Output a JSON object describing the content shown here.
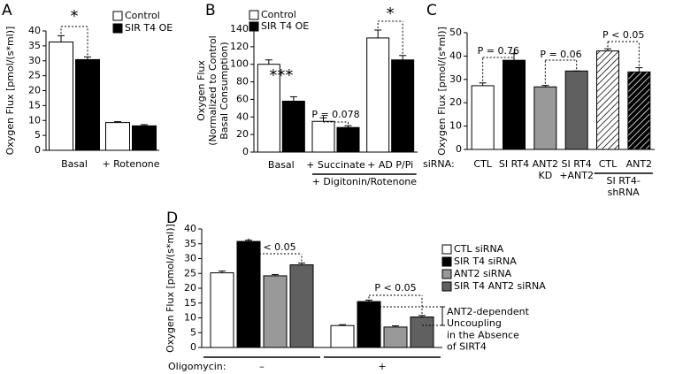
{
  "chart_data": [
    {
      "type": "bar",
      "label": "A",
      "ylabel": "Oxygen Flux [pmol/(s*ml)]",
      "categories": [
        "Basal",
        "+ Rotenone"
      ],
      "series": [
        {
          "name": "Control",
          "color": "#ffffff",
          "values": [
            36.3,
            9.3
          ],
          "errors": [
            2.1,
            0.3
          ]
        },
        {
          "name": "SIR T4 OE",
          "color": "#000000",
          "values": [
            30.4,
            8.2
          ],
          "errors": [
            0.9,
            0.4
          ]
        }
      ],
      "ylim": [
        0,
        40
      ],
      "yticks": [
        0,
        5,
        10,
        15,
        20,
        25,
        30,
        35,
        40
      ],
      "annotations": [
        "*"
      ]
    },
    {
      "type": "bar",
      "label": "B",
      "ylabel": "Oxygen Flux\n(Normalized to Control\nBasal Consumption)",
      "categories": [
        "Basal",
        "+ Succinate",
        "+ AD P/Pi"
      ],
      "group_label": "+ Digitonin/Rotenone",
      "series": [
        {
          "name": "Control",
          "color": "#ffffff",
          "values": [
            100,
            35,
            130
          ],
          "errors": [
            5,
            4,
            9
          ]
        },
        {
          "name": "SIR T4 OE",
          "color": "#000000",
          "values": [
            58,
            28,
            105
          ],
          "errors": [
            5,
            2,
            5
          ]
        }
      ],
      "ylim": [
        0,
        140
      ],
      "yticks": [
        0,
        20,
        40,
        60,
        80,
        100,
        120,
        140
      ],
      "annotations": [
        "***",
        "P = 0.078",
        "*"
      ]
    },
    {
      "type": "bar",
      "label": "C",
      "ylabel": "Oxygen Flux [pmol/(s*ml)]",
      "x_prefix": "siRNA:",
      "categories": [
        "CTL",
        "SI RT4",
        "ANT2\nKD",
        "SI RT4\n+ANT2",
        "CTL",
        "ANT2"
      ],
      "group_label": "SI RT4-\nshRNA",
      "values": [
        27.3,
        38.2,
        26.8,
        33.6,
        42.2,
        33.2
      ],
      "errors": [
        1.2,
        2.8,
        0.6,
        0,
        0.9,
        1.8
      ],
      "colors": [
        "#ffffff",
        "#000000",
        "#999999",
        "#606060",
        "#ffffff",
        "#000000"
      ],
      "hatched": [
        false,
        false,
        false,
        false,
        true,
        true
      ],
      "ylim": [
        0,
        50
      ],
      "yticks": [
        0,
        10,
        20,
        30,
        40,
        50
      ],
      "annotations": [
        "P = 0.76",
        "P = 0.06",
        "P < 0.05"
      ]
    },
    {
      "type": "bar",
      "label": "D",
      "ylabel": "Oxygen Flux [pmol/(s*ml)]",
      "x_prefix": "Oligomycin:",
      "categories": [
        "–",
        "+"
      ],
      "series": [
        {
          "name": "CTL siRNA",
          "color": "#ffffff",
          "values": [
            25.2,
            7.4
          ],
          "errors": [
            0.6,
            0.3
          ]
        },
        {
          "name": "SIR T4 siRNA",
          "color": "#000000",
          "values": [
            35.8,
            15.5
          ],
          "errors": [
            0.4,
            0.5
          ]
        },
        {
          "name": "ANT2 siRNA",
          "color": "#999999",
          "values": [
            24.2,
            6.9
          ],
          "errors": [
            0.4,
            0.4
          ]
        },
        {
          "name": "SIR T4 ANT2 siRNA",
          "color": "#606060",
          "values": [
            27.9,
            10.3
          ],
          "errors": [
            0.6,
            0.5
          ]
        }
      ],
      "ylim": [
        0,
        40
      ],
      "yticks": [
        0,
        5,
        10,
        15,
        20,
        25,
        30,
        35,
        40
      ],
      "annotations": [
        "P < 0.05",
        "P < 0.05"
      ],
      "note": "ANT2-dependent\nUncoupling\nin the Absence\nof SIRT4"
    }
  ]
}
